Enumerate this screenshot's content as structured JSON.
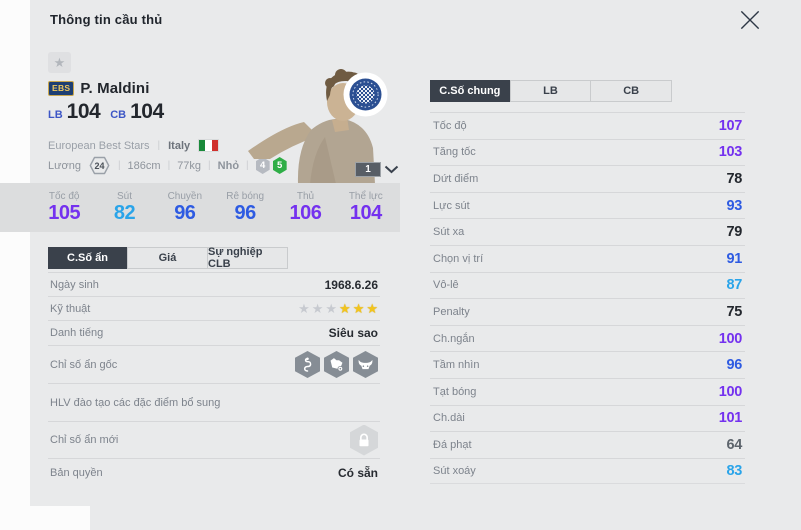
{
  "header": {
    "title": "Thông tin cầu thủ"
  },
  "colors": {
    "purple": "#7431ef",
    "blue": "#2e5be2",
    "cyan": "#2aa4e9",
    "dark": "#23272d",
    "gray": "#5d646c"
  },
  "player": {
    "class_badge": "EBS",
    "name": "P. Maldini",
    "positions": [
      {
        "pos": "LB",
        "rating": "104"
      },
      {
        "pos": "CB",
        "rating": "104"
      }
    ],
    "team": "European Best Stars",
    "nation": "Italy",
    "salary_label": "Lương",
    "salary": "24",
    "height": "186cm",
    "weight": "77kg",
    "body_type": "Nhỏ",
    "weak_foot": "4",
    "skill_badge": "5",
    "level": "1"
  },
  "top_stats": [
    {
      "label": "Tốc độ",
      "value": "105",
      "tier": "purple"
    },
    {
      "label": "Sút",
      "value": "82",
      "tier": "cyan"
    },
    {
      "label": "Chuyền",
      "value": "96",
      "tier": "blue"
    },
    {
      "label": "Rê bóng",
      "value": "96",
      "tier": "blue"
    },
    {
      "label": "Thủ",
      "value": "106",
      "tier": "purple"
    },
    {
      "label": "Thể lực",
      "value": "104",
      "tier": "purple"
    }
  ],
  "left_tabs": [
    {
      "label": "C.Số ẩn",
      "active": true
    },
    {
      "label": "Giá",
      "active": false
    },
    {
      "label": "Sự nghiệp CLB",
      "active": false
    }
  ],
  "left_rows": {
    "birth": {
      "label": "Ngày sinh",
      "value": "1968.6.26"
    },
    "technique": {
      "label": "Kỹ thuật",
      "stars_total": 6,
      "stars_filled": 3
    },
    "fame": {
      "label": "Danh tiếng",
      "value": "Siêu sao"
    },
    "origin_traits": {
      "label": "Chỉ số ẩn gốc",
      "icons": [
        "snake",
        "leopard",
        "buffalo"
      ]
    },
    "coach_note": {
      "label": "HLV đào tạo các đặc điểm bổ sung"
    },
    "new_traits": {
      "label": "Chỉ số ẩn mới",
      "icon": "lock"
    },
    "license": {
      "label": "Bản quyền",
      "value": "Có sẵn"
    }
  },
  "right_tabs": [
    {
      "label": "C.Số chung",
      "active": true
    },
    {
      "label": "LB",
      "active": false
    },
    {
      "label": "CB",
      "active": false
    }
  ],
  "detail_stats": [
    {
      "label": "Tốc độ",
      "value": "107",
      "tier": "purple"
    },
    {
      "label": "Tăng tốc",
      "value": "103",
      "tier": "purple"
    },
    {
      "label": "Dứt điểm",
      "value": "78",
      "tier": "dark"
    },
    {
      "label": "Lực sút",
      "value": "93",
      "tier": "blue"
    },
    {
      "label": "Sút xa",
      "value": "79",
      "tier": "dark"
    },
    {
      "label": "Chọn vị trí",
      "value": "91",
      "tier": "blue"
    },
    {
      "label": "Vô-lê",
      "value": "87",
      "tier": "cyan"
    },
    {
      "label": "Penalty",
      "value": "75",
      "tier": "dark"
    },
    {
      "label": "Ch.ngắn",
      "value": "100",
      "tier": "purple"
    },
    {
      "label": "Tầm nhìn",
      "value": "96",
      "tier": "blue"
    },
    {
      "label": "Tạt bóng",
      "value": "100",
      "tier": "purple"
    },
    {
      "label": "Ch.dài",
      "value": "101",
      "tier": "purple"
    },
    {
      "label": "Đá phạt",
      "value": "64",
      "tier": "gray"
    },
    {
      "label": "Sút xoáy",
      "value": "83",
      "tier": "cyan"
    }
  ]
}
